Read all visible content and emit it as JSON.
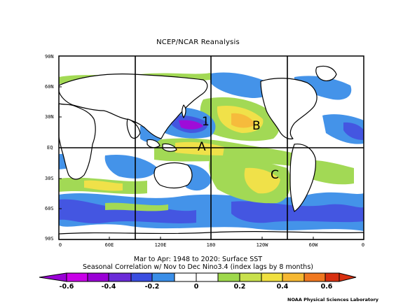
{
  "map": {
    "title": "NCEP/NCAR Reanalysis",
    "lat_labels": [
      "90N",
      "60N",
      "30N",
      "EQ",
      "30S",
      "60S",
      "90S"
    ],
    "lon_labels": [
      "0",
      "60E",
      "120E",
      "180",
      "120W",
      "60W",
      "0"
    ],
    "annotations": [
      "1",
      "A",
      "B",
      "C"
    ],
    "caption_line1": "Mar to Apr: 1948 to 2020: Surface SST",
    "caption_line2": "Seasonal Correlation w/ Nov to Dec Nino3.4 (index lags by 8 months)",
    "colorbar_labels": [
      "-0.6",
      "-0.4",
      "-0.2",
      "0",
      "0.2",
      "0.4",
      "0.6"
    ],
    "colorbar_colors": [
      "#9a00d6",
      "#c900e8",
      "#6a2bd8",
      "#3a4ee0",
      "#3a8ee8",
      "#3cc4ec",
      "#ffffff",
      "#9ed84c",
      "#c8e04c",
      "#f0e040",
      "#f6b832",
      "#f07820",
      "#d83010"
    ],
    "credit": "NOAA Physical Sciences Laboratory"
  }
}
